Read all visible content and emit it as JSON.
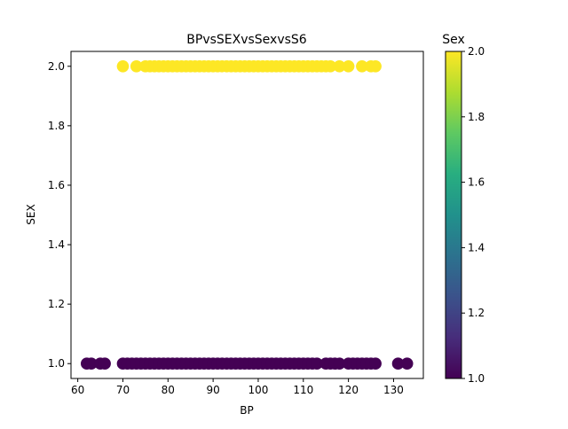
{
  "chart_data": {
    "type": "scatter",
    "title": "BPvsSEXvsSexvsS6",
    "xlabel": "BP",
    "ylabel": "SEX",
    "xlim": [
      58.5,
      136.6
    ],
    "ylim": [
      0.95,
      2.05
    ],
    "x_ticks": [
      60,
      70,
      80,
      90,
      100,
      110,
      120,
      130
    ],
    "y_ticks": [
      1.0,
      1.2,
      1.4,
      1.6,
      1.8,
      2.0
    ],
    "x_tick_labels": [
      "60",
      "70",
      "80",
      "90",
      "100",
      "110",
      "120",
      "130"
    ],
    "y_tick_labels": [
      "1.0",
      "1.2",
      "1.4",
      "1.6",
      "1.8",
      "2.0"
    ],
    "colorbar": {
      "title": "Sex",
      "range": [
        1.0,
        2.0
      ],
      "ticks": [
        1.0,
        1.2,
        1.4,
        1.6,
        1.8,
        2.0
      ],
      "tick_labels": [
        "1.0",
        "1.2",
        "1.4",
        "1.6",
        "1.8",
        "2.0"
      ],
      "colormap": "viridis"
    },
    "grid": false,
    "series": [
      {
        "values_sex": 2,
        "color": "#fde725",
        "bp": [
          70,
          73,
          75,
          76,
          77,
          78,
          79,
          80,
          81,
          82,
          83,
          84,
          85,
          86,
          87,
          88,
          89,
          90,
          91,
          92,
          93,
          94,
          95,
          96,
          97,
          98,
          99,
          100,
          101,
          102,
          103,
          104,
          105,
          106,
          107,
          108,
          109,
          110,
          111,
          112,
          113,
          114,
          115,
          116,
          118,
          120,
          123,
          125,
          126
        ]
      },
      {
        "values_sex": 1,
        "color": "#440154",
        "bp": [
          62,
          63,
          65,
          66,
          70,
          71,
          72,
          73,
          74,
          75,
          76,
          77,
          78,
          79,
          80,
          81,
          82,
          83,
          84,
          85,
          86,
          87,
          88,
          89,
          90,
          91,
          92,
          93,
          94,
          95,
          96,
          97,
          98,
          99,
          100,
          101,
          102,
          103,
          104,
          105,
          106,
          107,
          108,
          109,
          110,
          111,
          112,
          113,
          115,
          116,
          117,
          118,
          120,
          121,
          122,
          123,
          124,
          125,
          126,
          131,
          133
        ]
      }
    ]
  }
}
